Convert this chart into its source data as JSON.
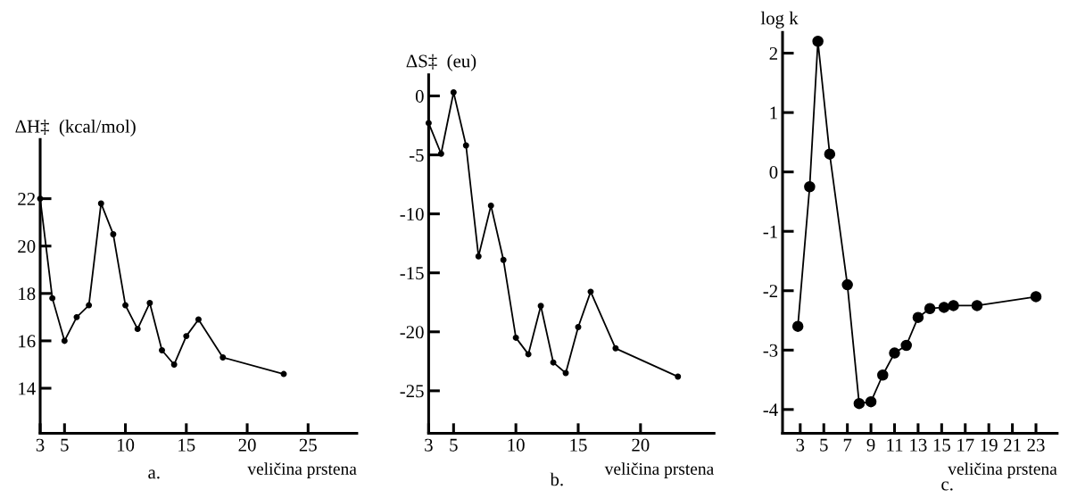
{
  "chart_data": [
    {
      "type": "line",
      "ylabel": "ΔH‡  (kcal/mol)",
      "xlabel": "veličina prstena",
      "annotations": [
        "a."
      ],
      "marker": "circle",
      "line_style": "solid",
      "grid": false,
      "xlim": [
        3,
        29
      ],
      "xticks": [
        3,
        5,
        10,
        15,
        20,
        25
      ],
      "ylim": [
        12.1,
        24.5
      ],
      "yticks": [
        14,
        16,
        18,
        20,
        22
      ],
      "x": [
        3,
        4,
        5,
        6,
        7,
        8,
        9,
        10,
        11,
        12,
        13,
        14,
        15,
        16,
        18,
        23
      ],
      "series": [
        {
          "color": "#000000",
          "values": [
            22,
            17.8,
            16,
            17,
            17.5,
            21.8,
            20.5,
            17.5,
            16.5,
            17.6,
            15.6,
            15,
            16.2,
            16.9,
            15.3,
            14.6
          ]
        }
      ]
    },
    {
      "type": "line",
      "ylabel": "ΔS‡  (eu)",
      "xlabel": "veličina prstena",
      "annotations": [
        "b."
      ],
      "marker": "circle",
      "line_style": "solid",
      "grid": false,
      "xlim": [
        3,
        25.9
      ],
      "xticks": [
        3,
        5,
        10,
        15,
        20
      ],
      "ylim": [
        -28.6,
        1.8
      ],
      "yticks": [
        -25,
        -20,
        -15,
        -10,
        -5,
        0
      ],
      "x": [
        3,
        4,
        5,
        6,
        7,
        8,
        9,
        10,
        11,
        12,
        13,
        14,
        15,
        16,
        18,
        23
      ],
      "series": [
        {
          "color": "#000000",
          "values": [
            -2.3,
            -4.9,
            0.3,
            -4.2,
            -13.6,
            -9.3,
            -13.9,
            -20.5,
            -21.9,
            -17.8,
            -22.6,
            -23.5,
            -19.6,
            -16.6,
            -21.4,
            -23.8
          ]
        }
      ]
    },
    {
      "type": "line",
      "ylabel": "log k",
      "xlabel": "veličina prstena",
      "annotations": [
        "c."
      ],
      "marker": "circle",
      "line_style": "solid",
      "grid": false,
      "xlim": [
        1.5,
        24.8
      ],
      "xticks": [
        3,
        5,
        7,
        9,
        11,
        13,
        15,
        17,
        19,
        21,
        23
      ],
      "ylim": [
        -4.4,
        2.35
      ],
      "yticks": [
        -4,
        -3,
        -2,
        -1,
        0,
        1,
        2
      ],
      "x": [
        2.8,
        3.8,
        4.5,
        5.5,
        7,
        8,
        9,
        10,
        11,
        12,
        13,
        14,
        15.2,
        16,
        18,
        23
      ],
      "series": [
        {
          "color": "#000000",
          "values": [
            -2.6,
            -0.25,
            2.2,
            0.3,
            -1.9,
            -3.9,
            -3.87,
            -3.42,
            -3.05,
            -2.92,
            -2.45,
            -2.3,
            -2.28,
            -2.25,
            -2.25,
            -2.1
          ]
        }
      ]
    }
  ]
}
